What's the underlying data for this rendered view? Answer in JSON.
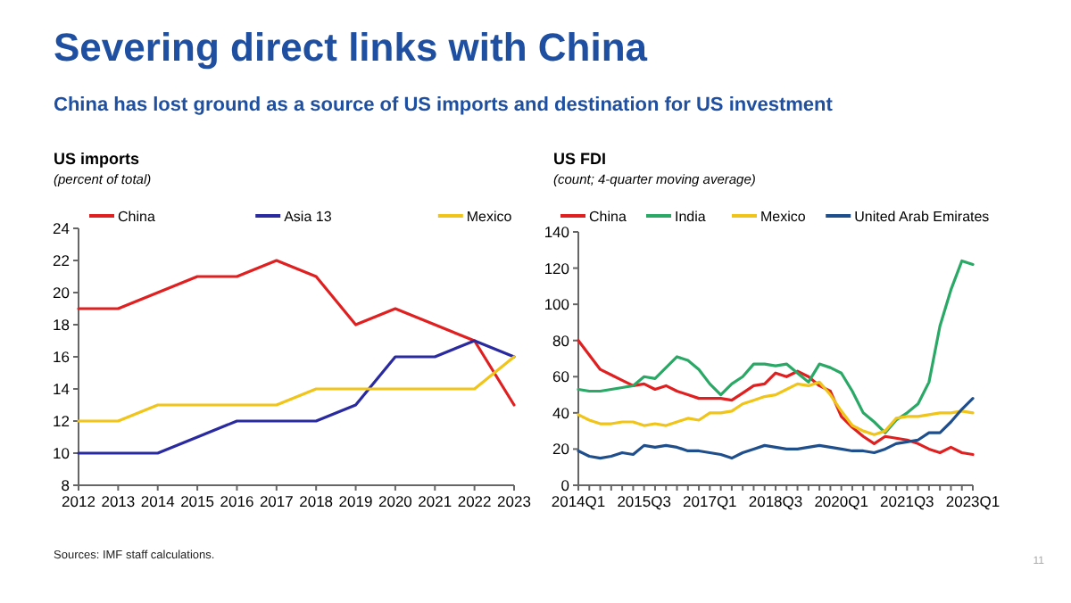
{
  "chart_data": [
    {
      "type": "other",
      "title": "Severing direct links with China",
      "subtitle": "China has lost ground as a source of US imports and destination for US investment",
      "annotations": [
        "Sources: IMF staff calculations.",
        "11"
      ]
    },
    {
      "type": "line",
      "title": "US imports",
      "subtitle": "(percent of total)",
      "x": [
        2012,
        2013,
        2014,
        2015,
        2016,
        2017,
        2018,
        2019,
        2020,
        2021,
        2022,
        2023
      ],
      "xlim": [
        2012,
        2023
      ],
      "xticks": [
        2012,
        2013,
        2014,
        2015,
        2016,
        2017,
        2018,
        2019,
        2020,
        2021,
        2022,
        2023
      ],
      "ylim": [
        8,
        24
      ],
      "yticks": [
        8,
        10,
        12,
        14,
        16,
        18,
        20,
        22,
        24
      ],
      "legend": "top",
      "grid": false,
      "series": [
        {
          "name": "China",
          "color": "#e02020",
          "values": [
            19,
            19,
            20,
            21,
            21,
            22,
            21,
            18,
            19,
            18,
            17,
            13
          ]
        },
        {
          "name": "Asia 13",
          "color": "#2a2aa0",
          "values": [
            10,
            10,
            10,
            11,
            12,
            12,
            12,
            13,
            16,
            16,
            17,
            16
          ]
        },
        {
          "name": "Mexico",
          "color": "#f0c419",
          "values": [
            12,
            12,
            13,
            13,
            13,
            13,
            14,
            14,
            14,
            14,
            14,
            16
          ]
        }
      ]
    },
    {
      "type": "line",
      "title": "US FDI",
      "subtitle": "(count; 4-quarter moving average)",
      "categories": [
        "2014Q1",
        null,
        null,
        null,
        null,
        null,
        "2015Q3",
        null,
        null,
        null,
        null,
        null,
        "2017Q1",
        null,
        null,
        null,
        null,
        null,
        "2018Q3",
        null,
        null,
        null,
        null,
        null,
        "2020Q1",
        null,
        null,
        null,
        null,
        null,
        "2021Q3",
        null,
        null,
        null,
        null,
        null,
        "2023Q1"
      ],
      "ylim": [
        0,
        140
      ],
      "yticks": [
        0,
        20,
        40,
        60,
        80,
        100,
        120,
        140
      ],
      "legend": "top",
      "grid": false,
      "series": [
        {
          "name": "China",
          "color": "#e02020",
          "values": [
            80,
            72,
            64,
            61,
            58,
            55,
            56,
            53,
            55,
            52,
            50,
            48,
            48,
            48,
            47,
            51,
            55,
            56,
            62,
            60,
            63,
            60,
            55,
            52,
            38,
            32,
            27,
            23,
            27,
            26,
            25,
            23,
            20,
            18,
            21,
            18,
            17
          ]
        },
        {
          "name": "India",
          "color": "#2aa866",
          "values": [
            53,
            52,
            52,
            53,
            54,
            55,
            60,
            59,
            65,
            71,
            69,
            64,
            56,
            50,
            56,
            60,
            67,
            67,
            66,
            67,
            62,
            57,
            67,
            65,
            62,
            52,
            40,
            35,
            29,
            36,
            40,
            45,
            57,
            88,
            108,
            124,
            122
          ]
        },
        {
          "name": "Mexico",
          "color": "#f0c419",
          "values": [
            39,
            36,
            34,
            34,
            35,
            35,
            33,
            34,
            33,
            35,
            37,
            36,
            40,
            40,
            41,
            45,
            47,
            49,
            50,
            53,
            56,
            55,
            57,
            50,
            41,
            33,
            30,
            28,
            30,
            37,
            38,
            38,
            39,
            40,
            40,
            41,
            40
          ]
        },
        {
          "name": "United Arab Emirates",
          "color": "#1f4e8c",
          "values": [
            19,
            16,
            15,
            16,
            18,
            17,
            22,
            21,
            22,
            21,
            19,
            19,
            18,
            17,
            15,
            18,
            20,
            22,
            21,
            20,
            20,
            21,
            22,
            21,
            20,
            19,
            19,
            18,
            20,
            23,
            24,
            25,
            29,
            29,
            35,
            42,
            48
          ]
        }
      ]
    }
  ]
}
